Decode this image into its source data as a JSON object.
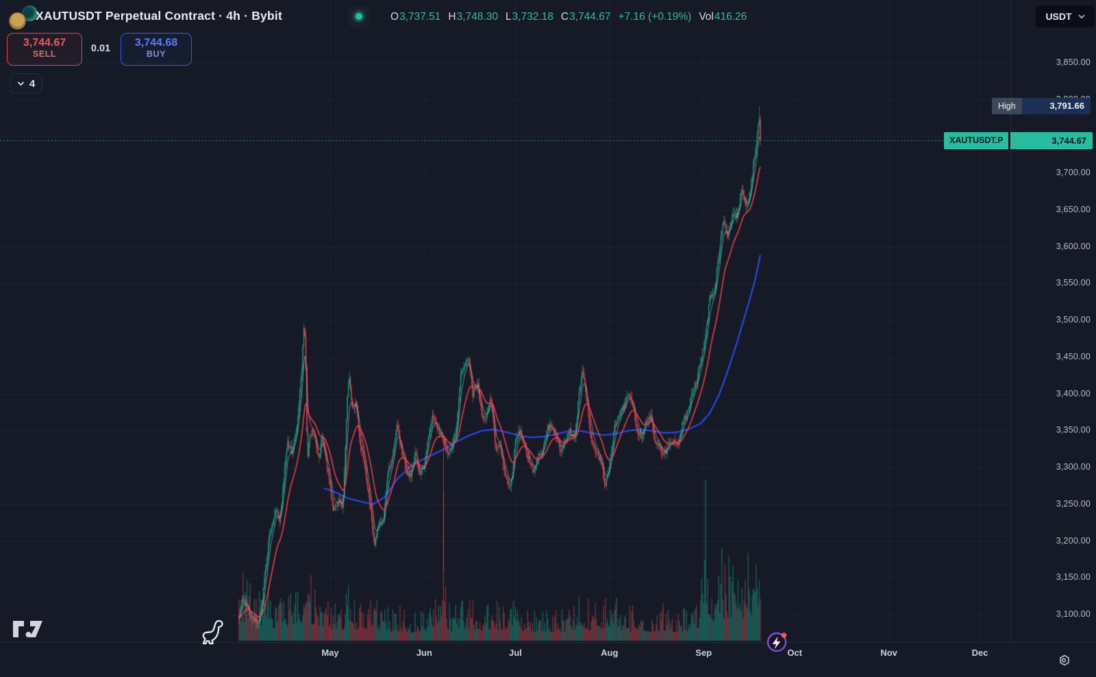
{
  "header": {
    "title": "XAUTUSDT Perpetual Contract · 4h · Bybit",
    "ohlc": {
      "o_label": "O",
      "o": "3,737.51",
      "h_label": "H",
      "h": "3,748.30",
      "l_label": "L",
      "l": "3,732.18",
      "c_label": "C",
      "c": "3,744.67",
      "change": "+7.16 (+0.19%)",
      "vol_label": "Vol",
      "vol": "416.26"
    },
    "currency": "USDT"
  },
  "order_panel": {
    "sell_price": "3,744.67",
    "sell_label": "SELL",
    "spread": "0.01",
    "buy_price": "3,744.68",
    "buy_label": "BUY",
    "collapsed_count": "4"
  },
  "price_scale": {
    "high_badge": {
      "label": "High",
      "value": "3,791.66"
    },
    "symbol_badge": {
      "label": "XAUTUSDT.P",
      "value": "3,744.67"
    }
  },
  "colors": {
    "background": "#151a26",
    "up": "#14a087",
    "down": "#f04350",
    "volume_up": "rgba(34,148,126,0.55)",
    "volume_down": "rgba(214,70,82,0.5)",
    "ma_fast_red": "#ee3d47",
    "ma_mid_white": "rgba(224,229,238,0.5)",
    "ma_slow_blue": "#2d46e6",
    "accent_teal": "#27bd9f",
    "grid": "rgba(150,160,195,0.07)",
    "high_badge_bg": "#1c2f55",
    "symbol_badge_bg": "#27bd9f"
  },
  "chart_data": {
    "type": "candlestick",
    "symbol": "XAUTUSDT.P",
    "exchange": "Bybit",
    "interval": "4h",
    "current_bar": {
      "open": 3737.51,
      "high": 3748.3,
      "low": 3732.18,
      "close": 3744.67,
      "change": 7.16,
      "change_pct": 0.19,
      "volume": 416.26
    },
    "visible_high": 3791.66,
    "last_price": 3744.67,
    "ylim": [
      3100,
      3850
    ],
    "y_ticks": [
      3100,
      3150,
      3200,
      3250,
      3300,
      3350,
      3400,
      3450,
      3500,
      3550,
      3600,
      3650,
      3700,
      3750,
      3800,
      3850
    ],
    "months": [
      {
        "label": "May",
        "day": 30
      },
      {
        "label": "Jun",
        "day": 61
      },
      {
        "label": "Jul",
        "day": 91
      },
      {
        "label": "Aug",
        "day": 122
      },
      {
        "label": "Sep",
        "day": 153
      },
      {
        "label": "Oct",
        "day": 183
      },
      {
        "label": "Nov",
        "day": 214
      },
      {
        "label": "Dec",
        "day": 244
      }
    ],
    "x_domain_days": [
      0,
      282
    ],
    "day_zero": "start of April",
    "bars_per_day": 3,
    "close_keypoints": [
      [
        0,
        3100
      ],
      [
        1,
        3118
      ],
      [
        2,
        3122
      ],
      [
        3.5,
        3098
      ],
      [
        5,
        3092
      ],
      [
        6.5,
        3085
      ],
      [
        8,
        3135
      ],
      [
        10,
        3208
      ],
      [
        12,
        3245
      ],
      [
        13.5,
        3228
      ],
      [
        15,
        3298
      ],
      [
        16,
        3335
      ],
      [
        17.5,
        3320
      ],
      [
        19,
        3352
      ],
      [
        20.5,
        3422
      ],
      [
        21.4,
        3492
      ],
      [
        21.9,
        3458
      ],
      [
        22.5,
        3312
      ],
      [
        23.2,
        3338
      ],
      [
        24.2,
        3352
      ],
      [
        25.2,
        3332
      ],
      [
        26.2,
        3312
      ],
      [
        27.5,
        3343
      ],
      [
        29,
        3302
      ],
      [
        31,
        3242
      ],
      [
        33,
        3256
      ],
      [
        34.2,
        3242
      ],
      [
        35.6,
        3396
      ],
      [
        36.2,
        3428
      ],
      [
        37.2,
        3380
      ],
      [
        38.6,
        3390
      ],
      [
        40,
        3330
      ],
      [
        41.5,
        3304
      ],
      [
        43,
        3252
      ],
      [
        44.6,
        3192
      ],
      [
        46,
        3222
      ],
      [
        47.6,
        3232
      ],
      [
        49,
        3296
      ],
      [
        50.6,
        3312
      ],
      [
        52,
        3356
      ],
      [
        53.6,
        3322
      ],
      [
        55,
        3296
      ],
      [
        56.6,
        3286
      ],
      [
        58,
        3320
      ],
      [
        59.6,
        3290
      ],
      [
        61,
        3302
      ],
      [
        62.6,
        3348
      ],
      [
        64,
        3372
      ],
      [
        65.6,
        3352
      ],
      [
        67.2,
        3342
      ],
      [
        68.6,
        3318
      ],
      [
        70,
        3328
      ],
      [
        71.6,
        3354
      ],
      [
        73,
        3426
      ],
      [
        74.6,
        3442
      ],
      [
        75.6,
        3452
      ],
      [
        77,
        3398
      ],
      [
        78.6,
        3414
      ],
      [
        80,
        3368
      ],
      [
        81.6,
        3372
      ],
      [
        83,
        3394
      ],
      [
        84.6,
        3326
      ],
      [
        86,
        3332
      ],
      [
        87.6,
        3292
      ],
      [
        89,
        3272
      ],
      [
        90,
        3290
      ],
      [
        91,
        3336
      ],
      [
        92.6,
        3350
      ],
      [
        94,
        3330
      ],
      [
        95.6,
        3308
      ],
      [
        97,
        3296
      ],
      [
        98.6,
        3316
      ],
      [
        100,
        3322
      ],
      [
        101.6,
        3354
      ],
      [
        103,
        3356
      ],
      [
        104.6,
        3342
      ],
      [
        106,
        3320
      ],
      [
        107.6,
        3338
      ],
      [
        109,
        3350
      ],
      [
        110.6,
        3342
      ],
      [
        112,
        3400
      ],
      [
        113.2,
        3436
      ],
      [
        114.6,
        3388
      ],
      [
        116,
        3338
      ],
      [
        117.6,
        3322
      ],
      [
        119,
        3312
      ],
      [
        120.6,
        3276
      ],
      [
        122,
        3300
      ],
      [
        123.6,
        3354
      ],
      [
        125,
        3372
      ],
      [
        126.6,
        3382
      ],
      [
        128,
        3398
      ],
      [
        129.6,
        3390
      ],
      [
        131,
        3352
      ],
      [
        132.6,
        3342
      ],
      [
        134,
        3362
      ],
      [
        135.6,
        3372
      ],
      [
        137,
        3336
      ],
      [
        138.6,
        3328
      ],
      [
        140,
        3316
      ],
      [
        141.6,
        3332
      ],
      [
        143,
        3338
      ],
      [
        144.6,
        3326
      ],
      [
        146,
        3362
      ],
      [
        147.6,
        3372
      ],
      [
        149,
        3400
      ],
      [
        150.6,
        3416
      ],
      [
        152,
        3446
      ],
      [
        153.6,
        3478
      ],
      [
        155,
        3530
      ],
      [
        156.6,
        3542
      ],
      [
        158,
        3588
      ],
      [
        159.6,
        3640
      ],
      [
        161,
        3616
      ],
      [
        162.6,
        3646
      ],
      [
        164,
        3642
      ],
      [
        165.6,
        3680
      ],
      [
        167,
        3654
      ],
      [
        168,
        3662
      ],
      [
        169,
        3700
      ],
      [
        170,
        3724
      ],
      [
        170.8,
        3756
      ],
      [
        171.2,
        3782
      ],
      [
        171.5,
        3770
      ],
      [
        171.8,
        3744.67
      ]
    ],
    "ma_slow_keypoints": [
      [
        28,
        3272
      ],
      [
        32,
        3266
      ],
      [
        36,
        3258
      ],
      [
        40,
        3254
      ],
      [
        44,
        3250
      ],
      [
        48,
        3260
      ],
      [
        52,
        3284
      ],
      [
        56,
        3300
      ],
      [
        60,
        3310
      ],
      [
        64,
        3318
      ],
      [
        68,
        3326
      ],
      [
        72,
        3336
      ],
      [
        76,
        3344
      ],
      [
        80,
        3350
      ],
      [
        84,
        3352
      ],
      [
        88,
        3348
      ],
      [
        92,
        3344
      ],
      [
        96,
        3341
      ],
      [
        100,
        3342
      ],
      [
        104,
        3345
      ],
      [
        108,
        3349
      ],
      [
        112,
        3350
      ],
      [
        116,
        3347
      ],
      [
        120,
        3344
      ],
      [
        124,
        3346
      ],
      [
        128,
        3350
      ],
      [
        132,
        3352
      ],
      [
        136,
        3350
      ],
      [
        140,
        3347
      ],
      [
        144,
        3348
      ],
      [
        148,
        3352
      ],
      [
        152,
        3360
      ],
      [
        155,
        3374
      ],
      [
        158,
        3398
      ],
      [
        161,
        3432
      ],
      [
        164,
        3470
      ],
      [
        166,
        3498
      ],
      [
        168,
        3526
      ],
      [
        170,
        3556
      ],
      [
        171.8,
        3592
      ]
    ],
    "volume_envelope": [
      [
        0,
        0.42
      ],
      [
        2,
        0.45
      ],
      [
        5,
        0.34
      ],
      [
        8,
        0.3
      ],
      [
        12,
        0.32
      ],
      [
        16,
        0.28
      ],
      [
        20,
        0.4
      ],
      [
        21.5,
        0.58
      ],
      [
        23,
        0.45
      ],
      [
        26,
        0.3
      ],
      [
        30,
        0.26
      ],
      [
        34,
        0.24
      ],
      [
        36,
        0.36
      ],
      [
        40,
        0.24
      ],
      [
        44,
        0.3
      ],
      [
        48,
        0.22
      ],
      [
        52,
        0.24
      ],
      [
        56,
        0.2
      ],
      [
        60,
        0.22
      ],
      [
        64,
        0.26
      ],
      [
        67,
        0.4
      ],
      [
        70,
        0.22
      ],
      [
        73,
        0.3
      ],
      [
        76,
        0.3
      ],
      [
        80,
        0.22
      ],
      [
        83,
        0.28
      ],
      [
        86,
        0.24
      ],
      [
        89,
        0.3
      ],
      [
        92,
        0.26
      ],
      [
        96,
        0.22
      ],
      [
        100,
        0.2
      ],
      [
        104,
        0.22
      ],
      [
        108,
        0.2
      ],
      [
        112,
        0.3
      ],
      [
        113.5,
        0.34
      ],
      [
        116,
        0.22
      ],
      [
        120,
        0.28
      ],
      [
        122,
        0.3
      ],
      [
        125,
        0.26
      ],
      [
        128,
        0.24
      ],
      [
        132,
        0.2
      ],
      [
        136,
        0.22
      ],
      [
        140,
        0.24
      ],
      [
        144,
        0.2
      ],
      [
        148,
        0.24
      ],
      [
        151,
        0.3
      ],
      [
        152.5,
        0.42
      ],
      [
        153.7,
        1
      ],
      [
        155,
        0.5
      ],
      [
        156.5,
        0.45
      ],
      [
        158.5,
        0.62
      ],
      [
        160.5,
        0.48
      ],
      [
        162.5,
        0.6
      ],
      [
        164.3,
        0.82
      ],
      [
        166,
        0.5
      ],
      [
        168,
        0.7
      ],
      [
        169.5,
        0.55
      ],
      [
        171,
        0.62
      ],
      [
        171.8,
        0.5
      ]
    ],
    "flash_wick": {
      "day": 67.33,
      "low": 3160
    },
    "last_bar_day": 171.8,
    "overlays": [
      "fast EMA (red)",
      "mid EMA (white)",
      "slow MA (blue)"
    ]
  }
}
